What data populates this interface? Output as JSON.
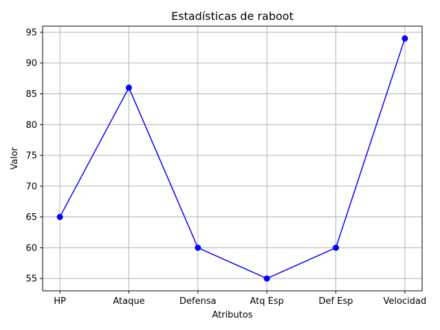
{
  "chart_data": {
    "type": "line",
    "title": "Estadísticas de raboot",
    "xlabel": "Atributos",
    "ylabel": "Valor",
    "categories": [
      "HP",
      "Ataque",
      "Defensa",
      "Atq Esp",
      "Def Esp",
      "Velocidad"
    ],
    "series": [
      {
        "values": [
          65,
          86,
          60,
          55,
          60,
          94
        ],
        "color": "#0000ff",
        "marker": "circle"
      }
    ],
    "ylim": [
      53,
      96
    ],
    "yticks": [
      55,
      60,
      65,
      70,
      75,
      80,
      85,
      90,
      95
    ],
    "grid": true
  }
}
